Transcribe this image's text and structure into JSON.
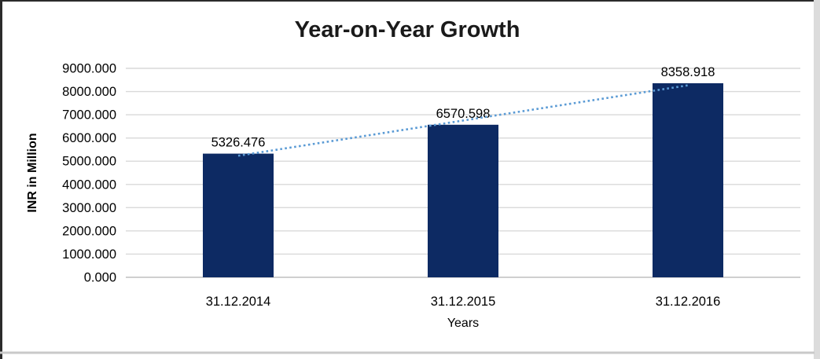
{
  "chart_data": {
    "type": "bar",
    "title": "Year-on-Year Growth",
    "categories": [
      "31.12.2014",
      "31.12.2015",
      "31.12.2016"
    ],
    "values": [
      5326.476,
      6570.598,
      8358.918
    ],
    "data_labels": [
      "5326.476",
      "6570.598",
      "8358.918"
    ],
    "xlabel": "Years",
    "ylabel": "INR in Million",
    "ylim": [
      0,
      9000
    ],
    "ytick_step": 1000,
    "ytick_labels": [
      "0.000",
      "1000.000",
      "2000.000",
      "3000.000",
      "4000.000",
      "5000.000",
      "6000.000",
      "7000.000",
      "8000.000",
      "9000.000"
    ],
    "grid": "horizontal",
    "legend": "none",
    "bar_color": "#0d2a63",
    "gridline_color": "#d9d9d9",
    "axis_line_color": "#bfbfbf",
    "text_color": "#000000",
    "trendline": {
      "type": "linear",
      "style": "dotted",
      "color": "#5b9bd5"
    }
  }
}
